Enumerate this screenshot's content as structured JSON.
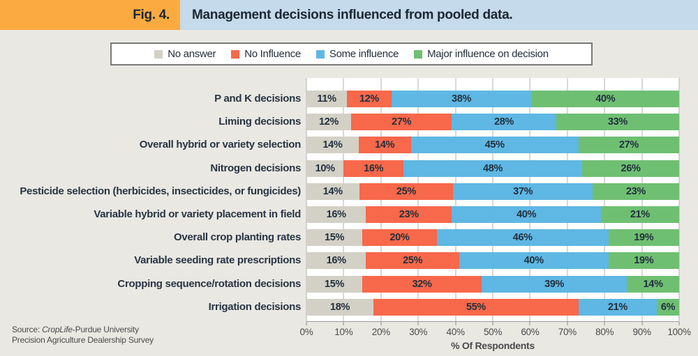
{
  "header": {
    "fig_label": "Fig. 4.",
    "title": "Management decisions influenced from pooled data."
  },
  "legend": {
    "items": [
      {
        "label": "No answer",
        "color": "#d3d0c6"
      },
      {
        "label": "No Influence",
        "color": "#f8684a"
      },
      {
        "label": "Some influence",
        "color": "#5fb7e3"
      },
      {
        "label": "Major influence on decision",
        "color": "#6fbf72"
      }
    ]
  },
  "chart_data": {
    "type": "bar",
    "orientation": "horizontal",
    "stacked": true,
    "unit": "%",
    "title": "Management decisions influenced from pooled data.",
    "xlabel": "% Of Respondents",
    "xlim": [
      0,
      100
    ],
    "x_ticks": [
      "0%",
      "10%",
      "20%",
      "30%",
      "40%",
      "50%",
      "60%",
      "70%",
      "80%",
      "90%",
      "100%"
    ],
    "grid": true,
    "legend_position": "top",
    "categories": [
      "P and K decisions",
      "Liming decisions",
      "Overall hybrid or variety selection",
      "Nitrogen decisions",
      "Pesticide selection (herbicides, insecticides, or fungicides)",
      "Variable hybrid or variety placement in field",
      "Overall crop planting rates",
      "Variable seeding rate prescriptions",
      "Cropping sequence/rotation decisions",
      "Irrigation decisions"
    ],
    "series": [
      {
        "name": "No answer",
        "color": "#d3d0c6",
        "values": [
          11,
          12,
          14,
          10,
          14,
          16,
          15,
          16,
          15,
          18
        ]
      },
      {
        "name": "No Influence",
        "color": "#f8684a",
        "values": [
          12,
          27,
          14,
          16,
          25,
          23,
          20,
          25,
          32,
          55
        ]
      },
      {
        "name": "Some influence",
        "color": "#5fb7e3",
        "values": [
          38,
          28,
          45,
          48,
          37,
          40,
          46,
          40,
          39,
          21
        ]
      },
      {
        "name": "Major influence on decision",
        "color": "#6fbf72",
        "values": [
          40,
          33,
          27,
          26,
          23,
          21,
          19,
          19,
          14,
          6
        ]
      }
    ]
  },
  "source": {
    "prefix": "Source: ",
    "italic": "CropLife",
    "suffix": "-Purdue University",
    "line2": "Precision Agriculture Dealership Survey"
  },
  "colors": {
    "header_orange": "#faaa40",
    "header_blue": "#c5daea",
    "background": "#e9e8e3",
    "plot_background": "#ffffff",
    "gridline": "#b2b2b2",
    "text_dark": "#22303e",
    "text_axis": "#4a4a4a",
    "legend_border": "#7a7a7a"
  }
}
